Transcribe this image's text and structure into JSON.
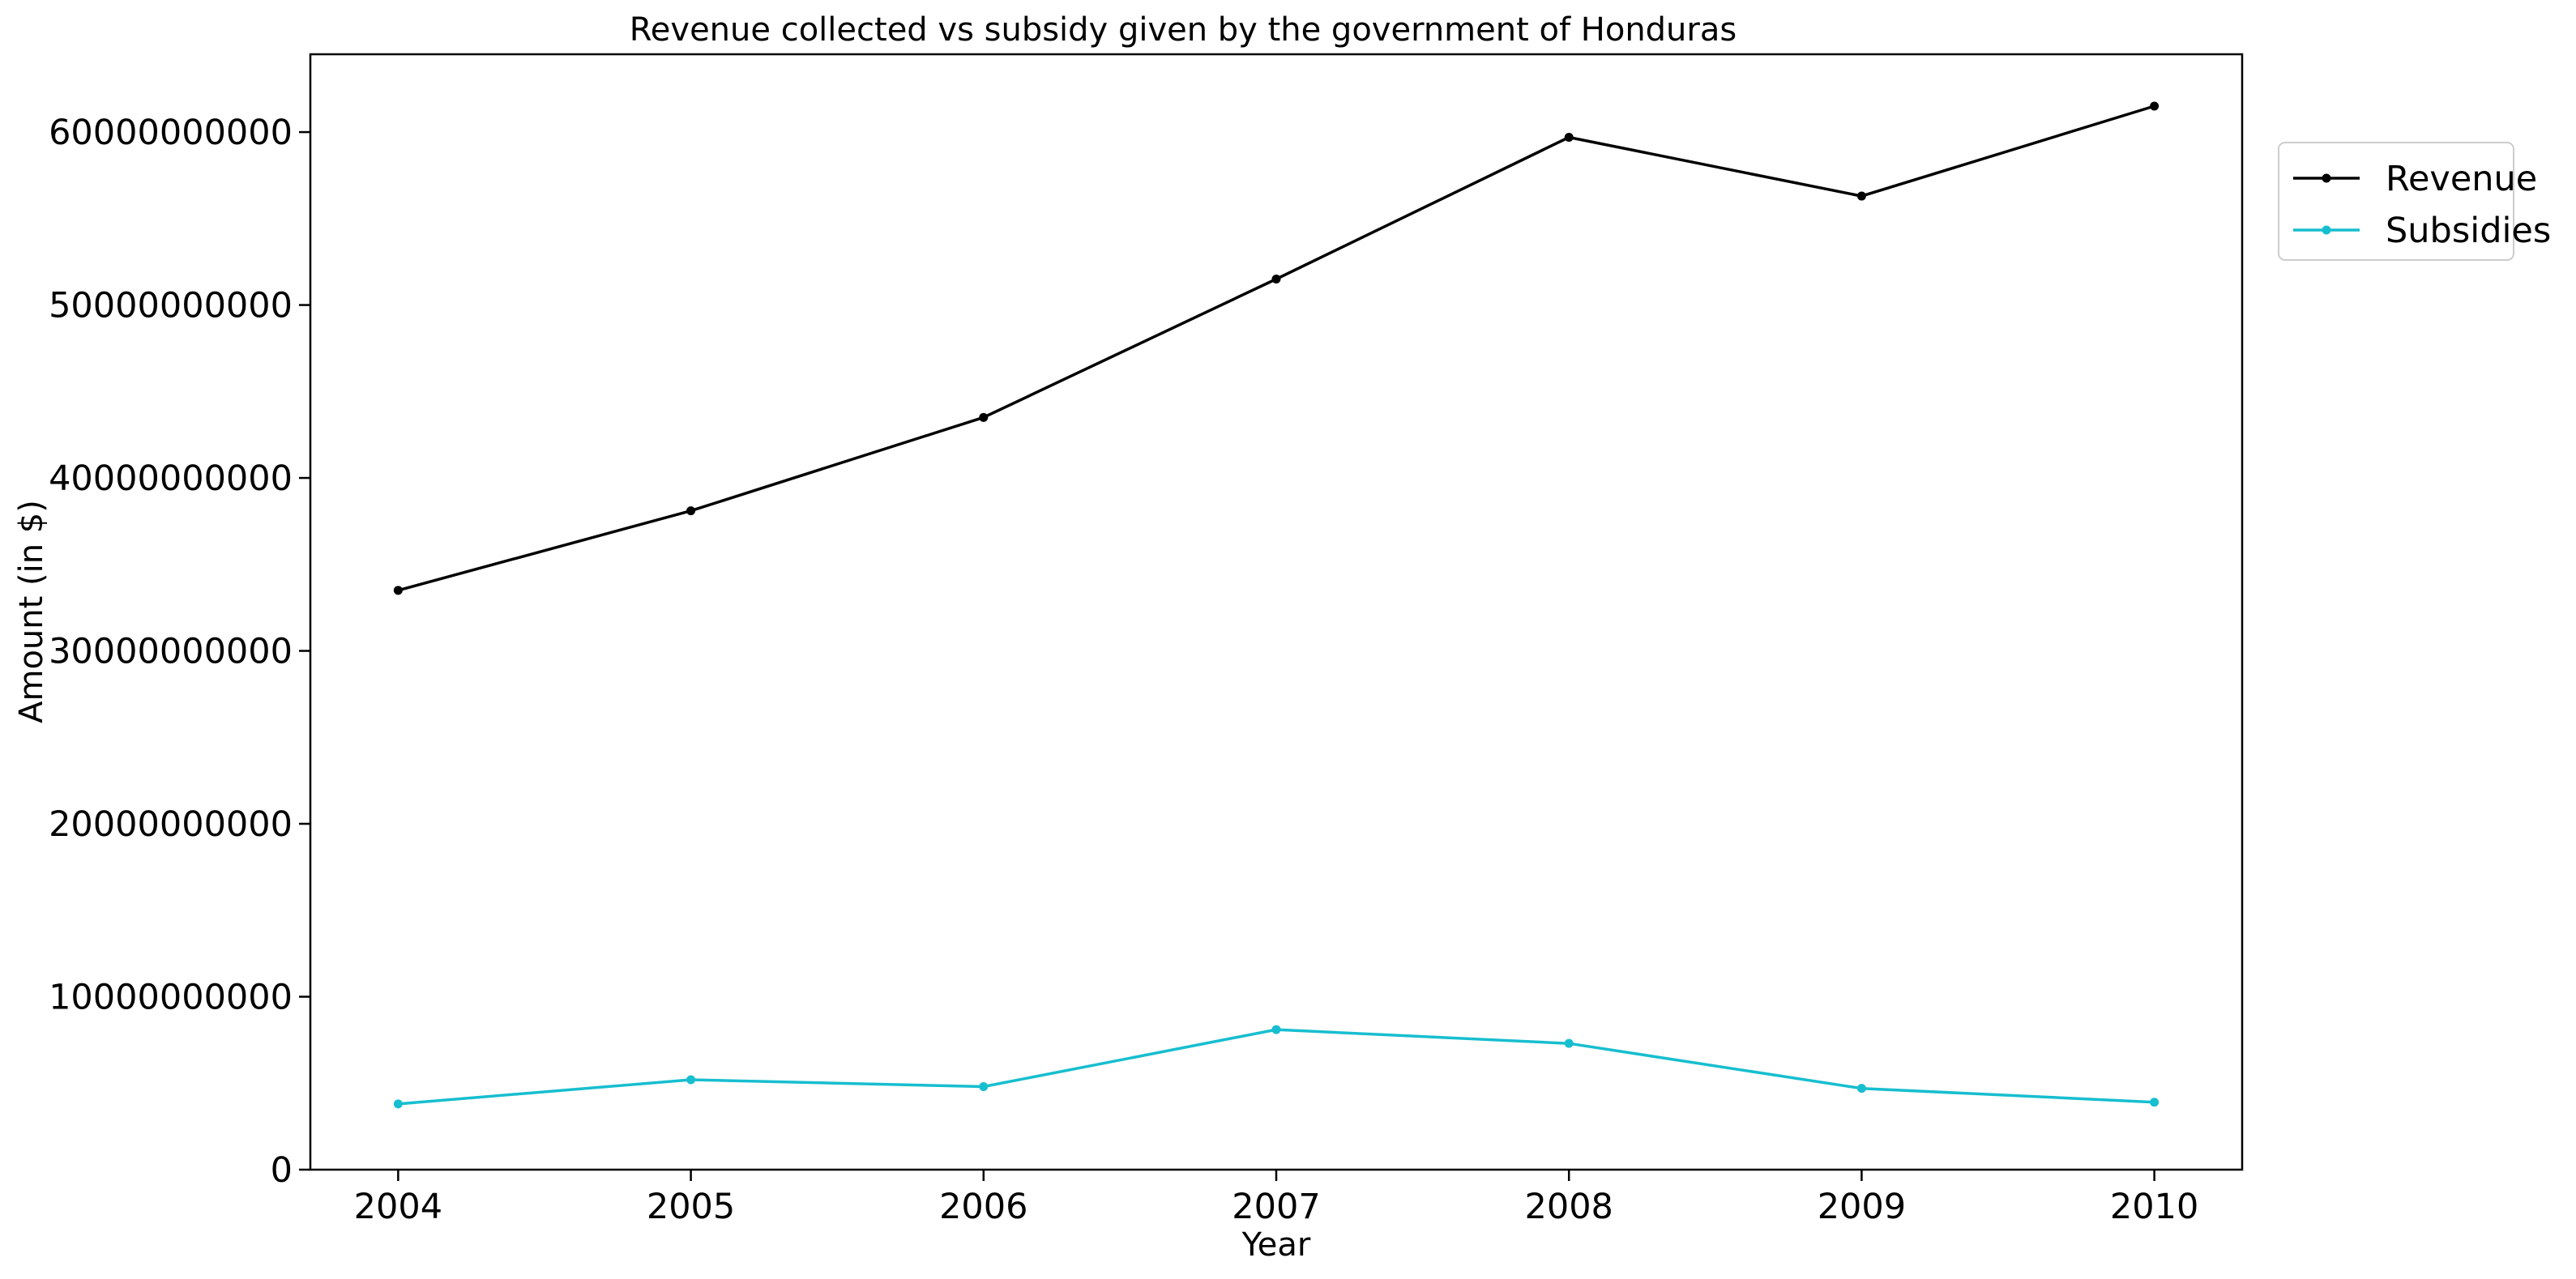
{
  "chart_data": {
    "type": "line",
    "title": "Revenue collected vs subsidy given by the government of Honduras",
    "xlabel": "Year",
    "ylabel": "Amount (in $)",
    "x": [
      2004,
      2005,
      2006,
      2007,
      2008,
      2009,
      2010
    ],
    "x_ticks": [
      "2004",
      "2005",
      "2006",
      "2007",
      "2008",
      "2009",
      "2010"
    ],
    "xlim": [
      2003.7,
      2010.3
    ],
    "ylim": [
      0,
      64500000000
    ],
    "y_ticks": [
      0,
      10000000000,
      20000000000,
      30000000000,
      40000000000,
      50000000000,
      60000000000
    ],
    "y_tick_labels": [
      "0",
      "10000000000",
      "20000000000",
      "30000000000",
      "40000000000",
      "50000000000",
      "60000000000"
    ],
    "grid": false,
    "legend_position": "upper-right-outside",
    "series": [
      {
        "name": "Revenue",
        "color": "#000000",
        "marker": "point",
        "values": [
          33500000000,
          38100000000,
          43500000000,
          51500000000,
          59700000000,
          56300000000,
          61500000000
        ]
      },
      {
        "name": "Subsidies",
        "color": "#17becf",
        "marker": "point",
        "values": [
          3800000000,
          5200000000,
          4800000000,
          8100000000,
          7300000000,
          4700000000,
          3900000000
        ]
      }
    ]
  }
}
